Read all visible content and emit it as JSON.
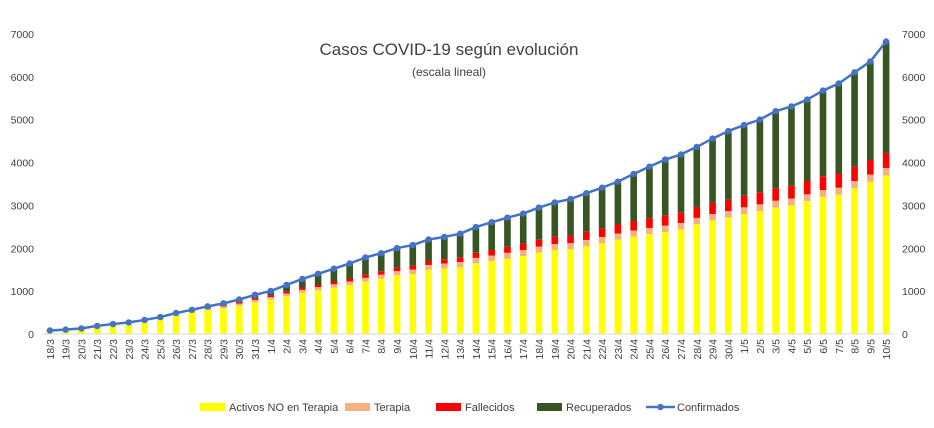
{
  "chart_data": {
    "type": "bar",
    "title": "Casos COVID-19 según evolución",
    "subtitle": "(escala lineal)",
    "xlabel": "",
    "ylabel": "",
    "ylim": [
      0,
      7000
    ],
    "yticks": [
      "0",
      "1000",
      "2000",
      "3000",
      "4000",
      "5000",
      "6000",
      "7000"
    ],
    "y2ticks": [
      "0",
      "1000",
      "2000",
      "3000",
      "4000",
      "5000",
      "6000",
      "7000"
    ],
    "grid": false,
    "legend_position": "bottom",
    "categories": [
      "18/3",
      "19/3",
      "20/3",
      "21/3",
      "22/3",
      "23/3",
      "24/3",
      "25/3",
      "26/3",
      "27/3",
      "28/3",
      "29/3",
      "30/3",
      "31/3",
      "1/4",
      "2/4",
      "3/4",
      "4/4",
      "5/4",
      "6/4",
      "7/4",
      "8/4",
      "9/4",
      "10/4",
      "11/4",
      "12/4",
      "13/4",
      "14/4",
      "15/4",
      "16/4",
      "17/4",
      "18/4",
      "19/4",
      "20/4",
      "21/4",
      "22/4",
      "23/4",
      "24/4",
      "25/4",
      "26/4",
      "27/4",
      "28/4",
      "29/4",
      "30/4",
      "1/5",
      "2/5",
      "3/5",
      "4/5",
      "5/5",
      "6/5",
      "7/5",
      "8/5",
      "9/5",
      "10/5"
    ],
    "series": [
      {
        "name": "Activos NO en Terapia",
        "kind": "bar",
        "color": "#FFFF00",
        "values": [
          75,
          95,
          120,
          175,
          215,
          250,
          300,
          360,
          440,
          500,
          560,
          600,
          660,
          740,
          800,
          880,
          960,
          1020,
          1080,
          1140,
          1220,
          1290,
          1370,
          1400,
          1500,
          1530,
          1560,
          1650,
          1700,
          1760,
          1820,
          1900,
          1960,
          1980,
          2050,
          2120,
          2200,
          2270,
          2330,
          2380,
          2440,
          2560,
          2650,
          2720,
          2800,
          2870,
          2950,
          3000,
          3100,
          3200,
          3250,
          3400,
          3550,
          3700
        ]
      },
      {
        "name": "Terapia",
        "kind": "bar",
        "color": "#F4B183",
        "values": [
          5,
          5,
          8,
          10,
          12,
          15,
          20,
          25,
          30,
          35,
          40,
          45,
          50,
          55,
          60,
          65,
          70,
          75,
          80,
          85,
          90,
          95,
          100,
          105,
          110,
          115,
          120,
          125,
          130,
          135,
          140,
          140,
          140,
          140,
          145,
          145,
          145,
          145,
          145,
          150,
          150,
          150,
          150,
          150,
          155,
          155,
          160,
          160,
          160,
          160,
          165,
          170,
          170,
          175
        ]
      },
      {
        "name": "Fallecidos",
        "kind": "bar",
        "color": "#FF0000",
        "values": [
          2,
          3,
          3,
          4,
          5,
          6,
          8,
          10,
          15,
          20,
          25,
          30,
          35,
          40,
          45,
          50,
          55,
          60,
          65,
          70,
          75,
          80,
          85,
          90,
          95,
          100,
          110,
          120,
          130,
          140,
          150,
          160,
          170,
          180,
          190,
          200,
          210,
          220,
          230,
          240,
          250,
          255,
          260,
          265,
          270,
          280,
          290,
          300,
          310,
          320,
          330,
          335,
          340,
          350
        ]
      },
      {
        "name": "Recuperados",
        "kind": "bar",
        "color": "#375623",
        "values": [
          0,
          0,
          0,
          0,
          0,
          0,
          0,
          0,
          5,
          10,
          20,
          40,
          60,
          80,
          100,
          150,
          200,
          250,
          300,
          350,
          400,
          420,
          450,
          480,
          500,
          520,
          550,
          600,
          650,
          680,
          700,
          750,
          800,
          850,
          900,
          950,
          1000,
          1100,
          1200,
          1300,
          1350,
          1400,
          1500,
          1600,
          1650,
          1700,
          1800,
          1850,
          1900,
          2000,
          2100,
          2200,
          2300,
          2600
        ]
      },
      {
        "name": "Confirmados",
        "kind": "line",
        "color": "#4472C4",
        "values": [
          82,
          103,
          131,
          189,
          232,
          271,
          328,
          395,
          490,
          565,
          645,
          715,
          805,
          915,
          1005,
          1145,
          1285,
          1405,
          1525,
          1645,
          1785,
          1885,
          2005,
          2075,
          2205,
          2265,
          2340,
          2495,
          2610,
          2715,
          2810,
          2950,
          3070,
          3150,
          3285,
          3415,
          3555,
          3735,
          3905,
          4070,
          4190,
          4365,
          4560,
          4735,
          4875,
          5005,
          5200,
          5310,
          5470,
          5680,
          5845,
          6105,
          6360,
          6825
        ]
      }
    ]
  }
}
